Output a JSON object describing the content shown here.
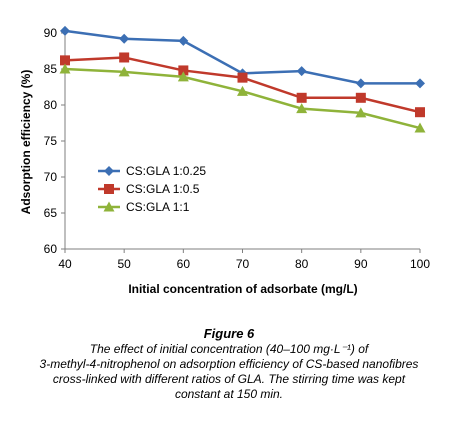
{
  "chart_data": {
    "type": "line",
    "title": "",
    "xlabel": "Initial concentration of adsorbate  (mg/L)",
    "ylabel": "Adsorption efficiency  (%)",
    "x": [
      40,
      50,
      60,
      70,
      80,
      90,
      100
    ],
    "xlim": [
      40,
      100
    ],
    "ylim": [
      60,
      90
    ],
    "x_ticks": [
      "40",
      "50",
      "60",
      "70",
      "80",
      "90",
      "100"
    ],
    "y_ticks": [
      "60",
      "65",
      "70",
      "75",
      "80",
      "85",
      "90"
    ],
    "grid": false,
    "legend_position": "left-center",
    "series": [
      {
        "name": "CS:GLA 1:0.25",
        "color": "#3c6fb4",
        "marker": "diamond",
        "values": [
          90.3,
          89.2,
          88.9,
          84.4,
          84.7,
          83.0,
          83.0
        ]
      },
      {
        "name": "CS:GLA 1:0.5",
        "color": "#c0392b",
        "marker": "square",
        "values": [
          86.2,
          86.6,
          84.8,
          83.8,
          81.0,
          81.0,
          79.0
        ]
      },
      {
        "name": "CS:GLA 1:1",
        "color": "#8fb33a",
        "marker": "triangle",
        "values": [
          85.0,
          84.6,
          83.9,
          81.9,
          79.5,
          78.9,
          76.8
        ]
      }
    ]
  },
  "caption": {
    "title": "Figure 6",
    "line1": "The effect of initial concentration (40–100 mg·L⁻¹) of",
    "line2": "3-methyl-4-nitrophenol on adsorption efficiency of CS-based nanofibres",
    "line3": "cross-linked with different ratios of GLA. The stirring time was kept",
    "line4": "constant at 150 min."
  }
}
